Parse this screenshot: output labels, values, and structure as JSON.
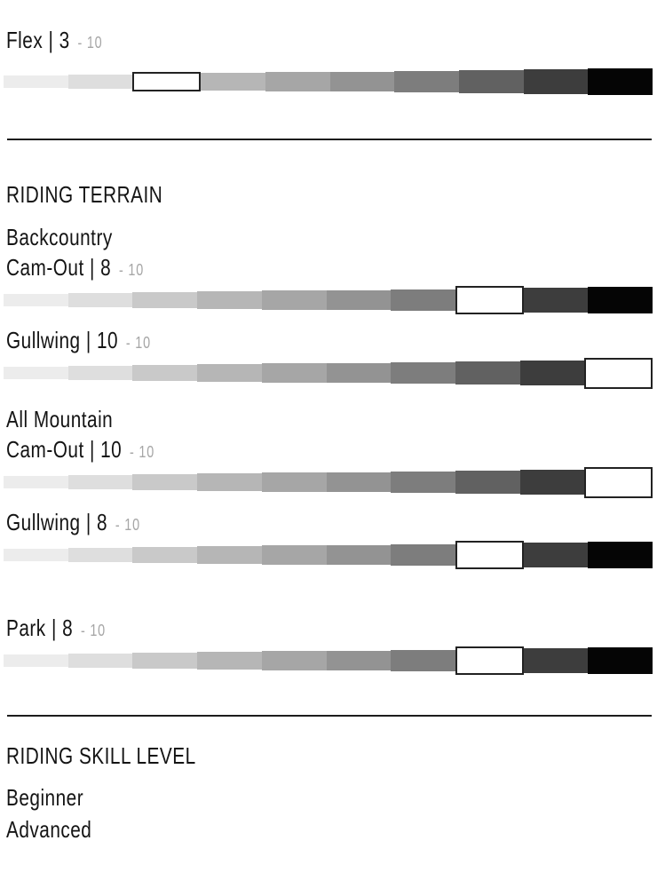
{
  "colors": {
    "text": "#141414",
    "suffix_gray": "#a6a6a6",
    "divider": "#1c1c1c",
    "highlight_fill": "#ffffff",
    "highlight_border": "#222222"
  },
  "scale": {
    "min": 1,
    "max": 10,
    "suffix": "- 10",
    "segment_colors": [
      "#ececec",
      "#dedede",
      "#c9c9c9",
      "#b6b6b6",
      "#a6a6a6",
      "#939393",
      "#7d7d7d",
      "#616161",
      "#3d3d3d",
      "#050505"
    ]
  },
  "flex_section": {
    "metric": {
      "label": "Flex",
      "display": "Flex | 3",
      "value": 3,
      "max": 10
    }
  },
  "riding_terrain": {
    "heading": "RIDING TERRAIN",
    "backcountry": {
      "name": "Backcountry",
      "cam_out": {
        "label": "Cam-Out",
        "display": "Cam-Out | 8",
        "value": 8,
        "max": 10
      },
      "gullwing": {
        "label": "Gullwing",
        "display": "Gullwing | 10",
        "value": 10,
        "max": 10
      }
    },
    "all_mountain": {
      "name": "All Mountain",
      "cam_out": {
        "label": "Cam-Out",
        "display": "Cam-Out | 10",
        "value": 10,
        "max": 10
      },
      "gullwing": {
        "label": "Gullwing",
        "display": "Gullwing | 8",
        "value": 8,
        "max": 10
      }
    },
    "park": {
      "label": "Park",
      "display": "Park | 8",
      "value": 8,
      "max": 10
    }
  },
  "riding_skill": {
    "heading": "RIDING SKILL LEVEL",
    "levels": [
      "Beginner",
      "Advanced"
    ]
  },
  "chart_data": {
    "type": "bar",
    "categories": [
      "Flex",
      "Backcountry Cam-Out",
      "Backcountry Gullwing",
      "All Mountain Cam-Out",
      "All Mountain Gullwing",
      "Park"
    ],
    "values": [
      3,
      8,
      10,
      10,
      8,
      8
    ],
    "xlabel": "",
    "ylabel": "",
    "ylim": [
      1,
      10
    ],
    "legend": [],
    "notes": "Each rating rendered as a 10-segment light-to-dark tapered scale; the segment equal to the value is highlighted as a white outlined box."
  }
}
